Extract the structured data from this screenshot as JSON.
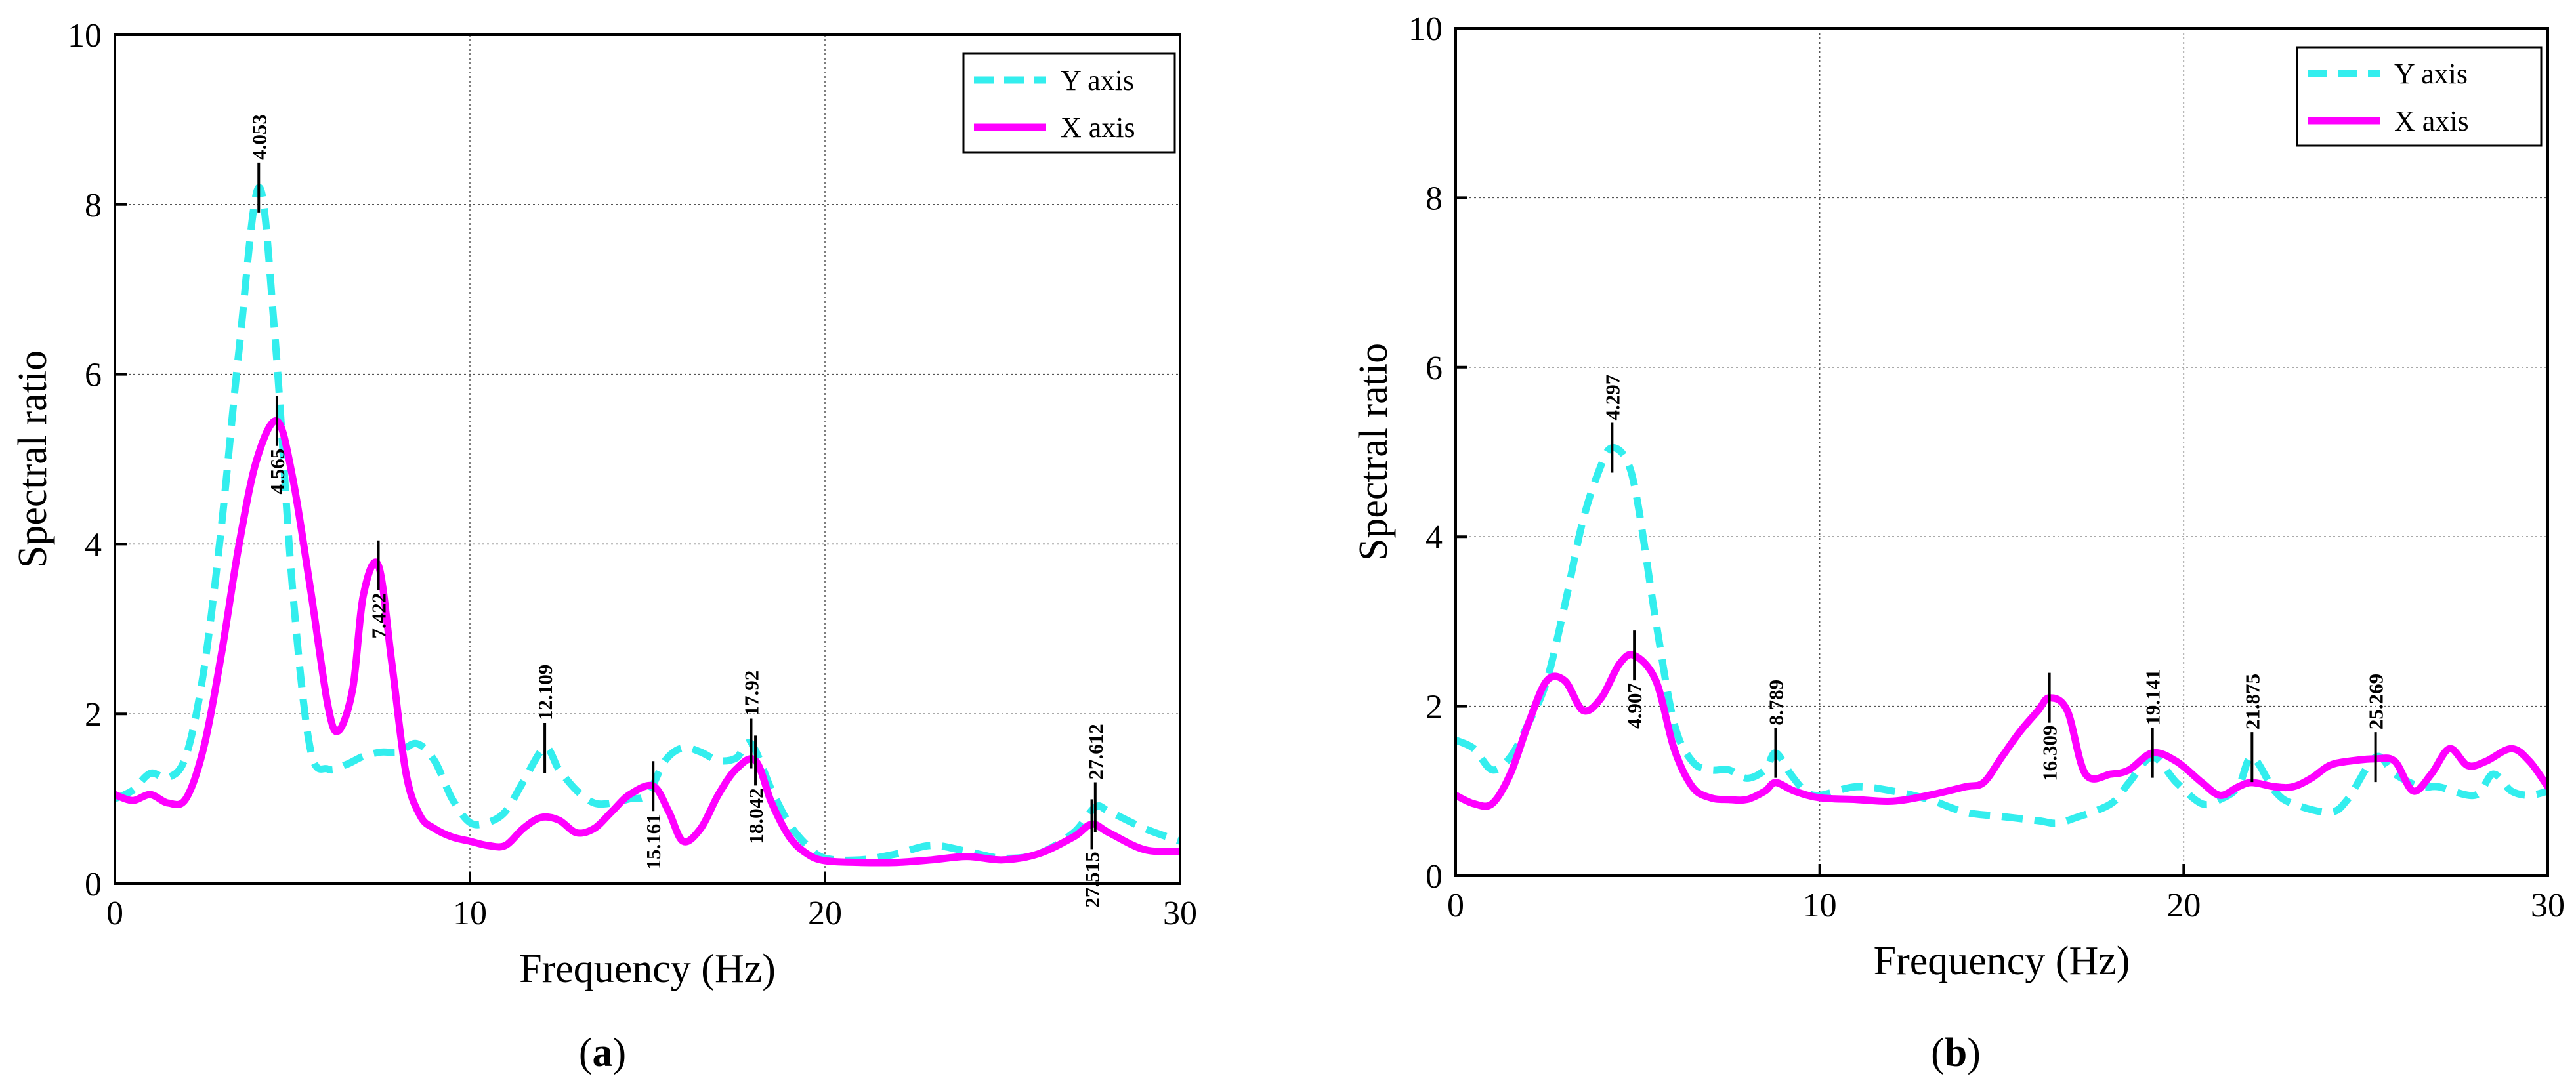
{
  "chart_data": [
    {
      "type": "line",
      "panel_label": "(a)",
      "panel_letter": "a",
      "xlabel": "Frequency (Hz)",
      "ylabel": "Spectral ratio",
      "xlim": [
        0,
        30
      ],
      "ylim": [
        0,
        10
      ],
      "xticks": [
        0,
        10,
        20,
        30
      ],
      "yticks": [
        0,
        2,
        4,
        6,
        8,
        10
      ],
      "grid": true,
      "legend_position": "top-right",
      "series": [
        {
          "name": "Y axis",
          "color": "#33eeee",
          "style": "dashed",
          "x": [
            0,
            0.5,
            1,
            1.5,
            2,
            2.5,
            3,
            3.5,
            4.053,
            4.5,
            5,
            5.5,
            6,
            6.5,
            7,
            7.5,
            8,
            8.5,
            9,
            9.5,
            10,
            10.5,
            11,
            11.5,
            12.109,
            12.5,
            13,
            13.5,
            14,
            14.5,
            15,
            15.5,
            16,
            16.5,
            17,
            17.5,
            17.92,
            18.5,
            19,
            19.5,
            20,
            21,
            22,
            23,
            24,
            25,
            26,
            27,
            27.612,
            28,
            29,
            30
          ],
          "y": [
            1.0,
            1.1,
            1.3,
            1.25,
            1.5,
            2.5,
            4.2,
            6.3,
            8.2,
            6.5,
            3.5,
            1.6,
            1.35,
            1.4,
            1.5,
            1.55,
            1.55,
            1.65,
            1.45,
            1.0,
            0.72,
            0.72,
            0.85,
            1.2,
            1.6,
            1.35,
            1.1,
            0.95,
            0.95,
            1.0,
            1.05,
            1.45,
            1.6,
            1.55,
            1.45,
            1.48,
            1.65,
            1.1,
            0.7,
            0.45,
            0.3,
            0.28,
            0.35,
            0.45,
            0.38,
            0.3,
            0.35,
            0.6,
            0.9,
            0.85,
            0.65,
            0.5
          ]
        },
        {
          "name": "X axis",
          "color": "#ff00ff",
          "style": "solid",
          "x": [
            0,
            0.5,
            1,
            1.5,
            2,
            2.5,
            3,
            3.5,
            4,
            4.565,
            5,
            5.5,
            6,
            6.3,
            6.7,
            7,
            7.422,
            7.8,
            8.2,
            8.6,
            9,
            9.5,
            10,
            10.5,
            11,
            11.5,
            12,
            12.5,
            13,
            13.5,
            14,
            14.5,
            15.161,
            15.6,
            16,
            16.5,
            17,
            17.5,
            18.042,
            18.5,
            19,
            19.5,
            20,
            21,
            22,
            23,
            24,
            25,
            26,
            27,
            27.515,
            28,
            29,
            30
          ],
          "y": [
            1.05,
            0.98,
            1.05,
            0.95,
            1.0,
            1.6,
            2.7,
            4.0,
            5.0,
            5.45,
            4.8,
            3.5,
            2.1,
            1.8,
            2.3,
            3.4,
            3.75,
            2.6,
            1.3,
            0.8,
            0.65,
            0.55,
            0.5,
            0.45,
            0.45,
            0.65,
            0.78,
            0.75,
            0.6,
            0.65,
            0.85,
            1.05,
            1.15,
            0.85,
            0.5,
            0.65,
            1.05,
            1.35,
            1.45,
            0.95,
            0.55,
            0.35,
            0.27,
            0.25,
            0.25,
            0.28,
            0.32,
            0.28,
            0.35,
            0.55,
            0.7,
            0.6,
            0.4,
            0.38
          ]
        }
      ],
      "annotations": [
        {
          "label": "4.053",
          "x": 4.053,
          "y": 8.2,
          "series": "Y axis",
          "side": "above"
        },
        {
          "label": "4.565",
          "x": 4.565,
          "y": 5.45,
          "series": "X axis",
          "side": "below"
        },
        {
          "label": "7.422",
          "x": 7.422,
          "y": 3.75,
          "series": "X axis",
          "side": "below"
        },
        {
          "label": "12.109",
          "x": 12.109,
          "y": 1.6,
          "series": "Y axis",
          "side": "above"
        },
        {
          "label": "15.161",
          "x": 15.161,
          "y": 1.15,
          "series": "X axis",
          "side": "below"
        },
        {
          "label": "17.92",
          "x": 17.92,
          "y": 1.65,
          "series": "Y axis",
          "side": "above"
        },
        {
          "label": "18.042",
          "x": 18.042,
          "y": 1.45,
          "series": "X axis",
          "side": "below"
        },
        {
          "label": "27.612",
          "x": 27.612,
          "y": 0.9,
          "series": "Y axis",
          "side": "above"
        },
        {
          "label": "27.515",
          "x": 27.515,
          "y": 0.7,
          "series": "X axis",
          "side": "below"
        }
      ]
    },
    {
      "type": "line",
      "panel_label": "(b)",
      "panel_letter": "b",
      "xlabel": "Frequency (Hz)",
      "ylabel": "Spectral ratio",
      "xlim": [
        0,
        30
      ],
      "ylim": [
        0,
        10
      ],
      "xticks": [
        0,
        10,
        20,
        30
      ],
      "yticks": [
        0,
        2,
        4,
        6,
        8,
        10
      ],
      "grid": true,
      "legend_position": "top-right",
      "series": [
        {
          "name": "Y axis",
          "color": "#33eeee",
          "style": "dashed",
          "x": [
            0,
            0.5,
            1,
            1.5,
            2,
            2.5,
            3,
            3.5,
            4,
            4.297,
            4.7,
            5,
            5.5,
            6,
            6.5,
            7,
            7.5,
            8,
            8.5,
            8.789,
            9.2,
            9.6,
            10,
            11,
            12,
            13,
            14,
            15,
            16,
            16.5,
            17,
            18,
            18.5,
            19.141,
            19.8,
            20.5,
            21,
            21.5,
            21.875,
            22.5,
            23,
            24,
            24.5,
            25.269,
            25.8,
            26.5,
            27,
            28,
            28.5,
            29,
            29.5,
            30
          ],
          "y": [
            1.6,
            1.5,
            1.25,
            1.4,
            1.8,
            2.3,
            3.2,
            4.2,
            4.85,
            5.05,
            4.9,
            4.4,
            3.0,
            1.8,
            1.35,
            1.25,
            1.25,
            1.15,
            1.25,
            1.45,
            1.2,
            1.0,
            0.95,
            1.05,
            1.0,
            0.9,
            0.75,
            0.7,
            0.65,
            0.62,
            0.68,
            0.85,
            1.1,
            1.4,
            1.1,
            0.85,
            0.9,
            1.05,
            1.4,
            1.0,
            0.85,
            0.75,
            0.9,
            1.4,
            1.2,
            1.05,
            1.05,
            0.95,
            1.2,
            1.0,
            0.95,
            1.0
          ]
        },
        {
          "name": "X axis",
          "color": "#ff00ff",
          "style": "solid",
          "x": [
            0,
            0.5,
            1,
            1.5,
            2,
            2.5,
            3,
            3.5,
            4,
            4.5,
            4.907,
            5.5,
            6,
            6.5,
            7,
            7.5,
            8,
            8.5,
            8.789,
            9.3,
            10,
            11,
            12,
            13,
            14,
            14.5,
            15,
            15.5,
            16,
            16.309,
            16.8,
            17.3,
            18,
            18.5,
            19.141,
            19.8,
            20.5,
            21,
            21.5,
            21.875,
            22.5,
            23,
            23.5,
            24,
            24.5,
            25.269,
            25.8,
            26.3,
            26.8,
            27.3,
            27.8,
            28.3,
            29,
            29.5,
            30
          ],
          "y": [
            0.95,
            0.85,
            0.85,
            1.2,
            1.8,
            2.3,
            2.3,
            1.95,
            2.1,
            2.5,
            2.6,
            2.3,
            1.5,
            1.05,
            0.92,
            0.9,
            0.9,
            1.0,
            1.1,
            1.0,
            0.92,
            0.9,
            0.88,
            0.95,
            1.05,
            1.1,
            1.4,
            1.7,
            1.95,
            2.1,
            1.95,
            1.2,
            1.2,
            1.25,
            1.45,
            1.35,
            1.1,
            0.95,
            1.05,
            1.1,
            1.05,
            1.05,
            1.15,
            1.3,
            1.35,
            1.38,
            1.35,
            1.0,
            1.2,
            1.5,
            1.3,
            1.35,
            1.5,
            1.35,
            1.05
          ]
        }
      ],
      "annotations": [
        {
          "label": "4.297",
          "x": 4.297,
          "y": 5.05,
          "series": "Y axis",
          "side": "above"
        },
        {
          "label": "4.907",
          "x": 4.907,
          "y": 2.6,
          "series": "X axis",
          "side": "below"
        },
        {
          "label": "8.789",
          "x": 8.789,
          "y": 1.45,
          "series": "Y axis",
          "side": "above"
        },
        {
          "label": "16.309",
          "x": 16.309,
          "y": 2.1,
          "series": "X axis",
          "side": "below"
        },
        {
          "label": "19.141",
          "x": 19.141,
          "y": 1.45,
          "series": "X axis",
          "side": "above"
        },
        {
          "label": "21.875",
          "x": 21.875,
          "y": 1.4,
          "series": "Y axis",
          "side": "above"
        },
        {
          "label": "25.269",
          "x": 25.269,
          "y": 1.4,
          "series": "X axis",
          "side": "above"
        }
      ]
    }
  ]
}
